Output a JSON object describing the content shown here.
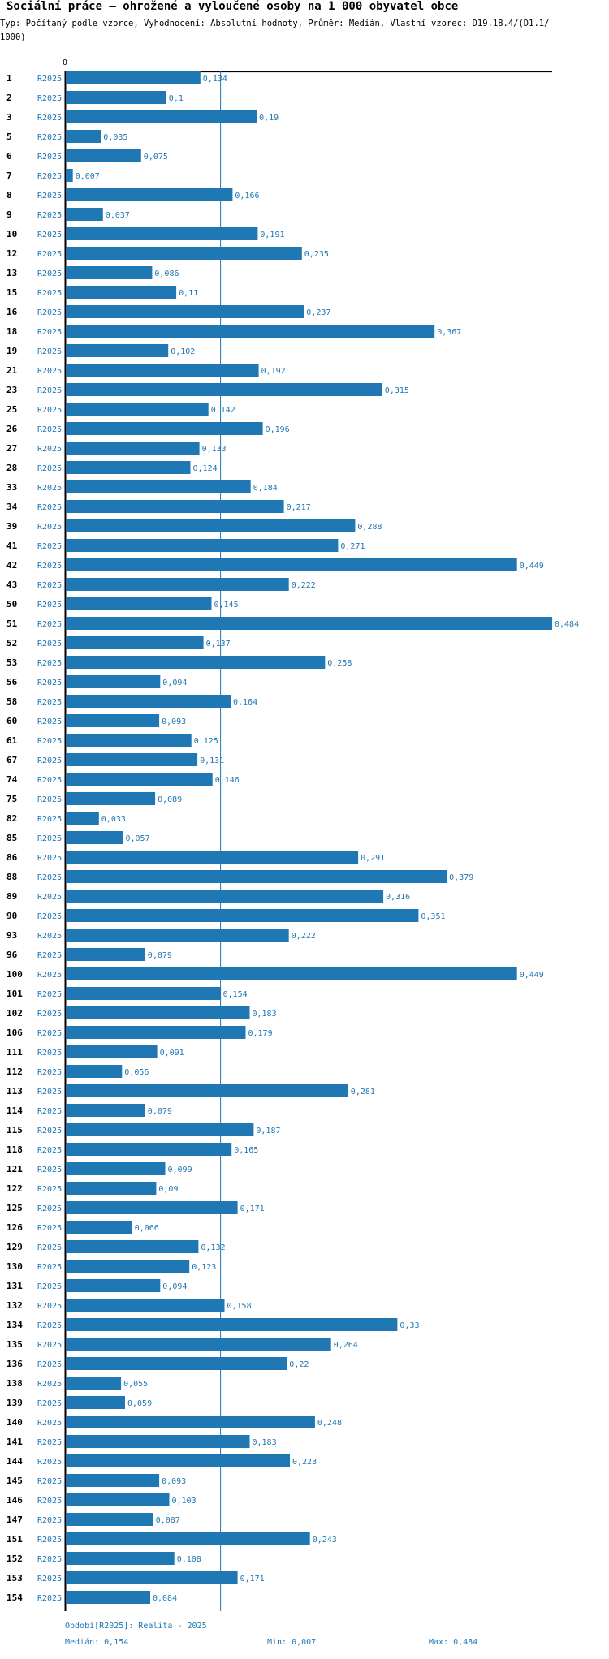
{
  "header": {
    "title": "Sociální práce – ohrožené a vyloučené osoby na 1 000 obyvatel obce",
    "subtitle": "Typ: Počítaný podle vzorce, Vyhodnocení: Absolutní hodnoty, Průměr: Medián, Vlastní vzorec: D19.18.4/(D1.1/1000)"
  },
  "chart_data": {
    "type": "bar",
    "orientation": "horizontal",
    "axis_zero_label": "0",
    "series_name": "R2025",
    "xlim": [
      0,
      0.484
    ],
    "median_line": 0.154,
    "categories": [
      "1",
      "2",
      "3",
      "5",
      "6",
      "7",
      "8",
      "9",
      "10",
      "12",
      "13",
      "15",
      "16",
      "18",
      "19",
      "21",
      "23",
      "25",
      "26",
      "27",
      "28",
      "33",
      "34",
      "39",
      "41",
      "42",
      "43",
      "50",
      "51",
      "52",
      "53",
      "56",
      "58",
      "60",
      "61",
      "67",
      "74",
      "75",
      "82",
      "85",
      "86",
      "88",
      "89",
      "90",
      "93",
      "96",
      "100",
      "101",
      "102",
      "106",
      "111",
      "112",
      "113",
      "114",
      "115",
      "118",
      "121",
      "122",
      "125",
      "126",
      "129",
      "130",
      "131",
      "132",
      "134",
      "135",
      "136",
      "138",
      "139",
      "140",
      "141",
      "144",
      "145",
      "146",
      "147",
      "151",
      "152",
      "153",
      "154"
    ],
    "values": [
      0.134,
      0.1,
      0.19,
      0.035,
      0.075,
      0.007,
      0.166,
      0.037,
      0.191,
      0.235,
      0.086,
      0.11,
      0.237,
      0.367,
      0.102,
      0.192,
      0.315,
      0.142,
      0.196,
      0.133,
      0.124,
      0.184,
      0.217,
      0.288,
      0.271,
      0.449,
      0.222,
      0.145,
      0.484,
      0.137,
      0.258,
      0.094,
      0.164,
      0.093,
      0.125,
      0.131,
      0.146,
      0.089,
      0.033,
      0.057,
      0.291,
      0.379,
      0.316,
      0.351,
      0.222,
      0.079,
      0.449,
      0.154,
      0.183,
      0.179,
      0.091,
      0.056,
      0.281,
      0.079,
      0.187,
      0.165,
      0.099,
      0.09,
      0.171,
      0.066,
      0.132,
      0.123,
      0.094,
      0.158,
      0.33,
      0.264,
      0.22,
      0.055,
      0.059,
      0.248,
      0.183,
      0.223,
      0.093,
      0.103,
      0.087,
      0.243,
      0.108,
      0.171,
      0.084
    ],
    "value_labels": [
      "0,134",
      "0,1",
      "0,19",
      "0,035",
      "0,075",
      "0,007",
      "0,166",
      "0,037",
      "0,191",
      "0,235",
      "0,086",
      "0,11",
      "0,237",
      "0,367",
      "0,102",
      "0,192",
      "0,315",
      "0,142",
      "0,196",
      "0,133",
      "0,124",
      "0,184",
      "0,217",
      "0,288",
      "0,271",
      "0,449",
      "0,222",
      "0,145",
      "0,484",
      "0,137",
      "0,258",
      "0,094",
      "0,164",
      "0,093",
      "0,125",
      "0,131",
      "0,146",
      "0,089",
      "0,033",
      "0,057",
      "0,291",
      "0,379",
      "0,316",
      "0,351",
      "0,222",
      "0,079",
      "0,449",
      "0,154",
      "0,183",
      "0,179",
      "0,091",
      "0,056",
      "0,281",
      "0,079",
      "0,187",
      "0,165",
      "0,099",
      "0,09",
      "0,171",
      "0,066",
      "0,132",
      "0,123",
      "0,094",
      "0,158",
      "0,33",
      "0,264",
      "0,22",
      "0,055",
      "0,059",
      "0,248",
      "0,183",
      "0,223",
      "0,093",
      "0,103",
      "0,087",
      "0,243",
      "0,108",
      "0,171",
      "0,084"
    ]
  },
  "footer": {
    "period": "Období[R2025]: Realita - 2025",
    "median": "Medián: 0,154",
    "min": "Min: 0,007",
    "max": "Max: 0,484"
  },
  "colors": {
    "bar": "#1f77b4",
    "text": "#000000"
  }
}
